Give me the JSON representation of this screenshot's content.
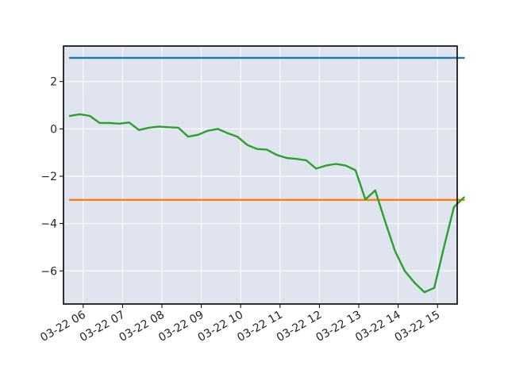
{
  "chart_data": {
    "type": "line",
    "title": "",
    "xlabel": "",
    "ylabel": "",
    "x_ticks": [
      "03-22 06",
      "03-22 07",
      "03-22 08",
      "03-22 09",
      "03-22 10",
      "03-22 11",
      "03-22 12",
      "03-22 13",
      "03-22 14",
      "03-22 15"
    ],
    "y_ticks": [
      "2",
      "0",
      "−2",
      "−4",
      "−6"
    ],
    "y_tick_values": [
      2,
      0,
      -2,
      -4,
      -6
    ],
    "ylim": [
      -7.4,
      3.5
    ],
    "xlim": [
      "2023-03-22 05:30",
      "2023-03-22 15:30"
    ],
    "grid": true,
    "background": "#dfe4ef",
    "series": [
      {
        "color": "#1f77b4",
        "x": [
          "2023-03-22 05:40",
          "2023-03-22 15:40"
        ],
        "y": [
          3.0,
          3.0
        ]
      },
      {
        "color": "#ff7f0e",
        "x": [
          "2023-03-22 05:40",
          "2023-03-22 15:40"
        ],
        "y": [
          -3.0,
          -3.0
        ]
      },
      {
        "color": "#2ca02c",
        "x": [
          "2023-03-22 05:40",
          "2023-03-22 05:55",
          "2023-03-22 06:10",
          "2023-03-22 06:25",
          "2023-03-22 06:40",
          "2023-03-22 06:55",
          "2023-03-22 07:10",
          "2023-03-22 07:25",
          "2023-03-22 07:40",
          "2023-03-22 07:55",
          "2023-03-22 08:10",
          "2023-03-22 08:25",
          "2023-03-22 08:40",
          "2023-03-22 08:55",
          "2023-03-22 09:10",
          "2023-03-22 09:25",
          "2023-03-22 09:40",
          "2023-03-22 09:55",
          "2023-03-22 10:10",
          "2023-03-22 10:25",
          "2023-03-22 10:40",
          "2023-03-22 10:55",
          "2023-03-22 11:10",
          "2023-03-22 11:25",
          "2023-03-22 11:40",
          "2023-03-22 11:55",
          "2023-03-22 12:10",
          "2023-03-22 12:25",
          "2023-03-22 12:40",
          "2023-03-22 12:55",
          "2023-03-22 13:10",
          "2023-03-22 13:25",
          "2023-03-22 13:40",
          "2023-03-22 13:55",
          "2023-03-22 14:10",
          "2023-03-22 14:25",
          "2023-03-22 14:40",
          "2023-03-22 14:55",
          "2023-03-22 15:10",
          "2023-03-22 15:25",
          "2023-03-22 15:40"
        ],
        "y": [
          0.55,
          0.62,
          0.55,
          0.25,
          0.25,
          0.22,
          0.27,
          -0.05,
          0.05,
          0.1,
          0.07,
          0.05,
          -0.33,
          -0.25,
          -0.08,
          0.0,
          -0.18,
          -0.33,
          -0.68,
          -0.85,
          -0.88,
          -1.1,
          -1.23,
          -1.27,
          -1.33,
          -1.68,
          -1.55,
          -1.48,
          -1.55,
          -1.75,
          -2.98,
          -2.6,
          -3.9,
          -5.15,
          -6.0,
          -6.5,
          -6.9,
          -6.72,
          -4.97,
          -3.3,
          -2.9
        ]
      }
    ]
  }
}
